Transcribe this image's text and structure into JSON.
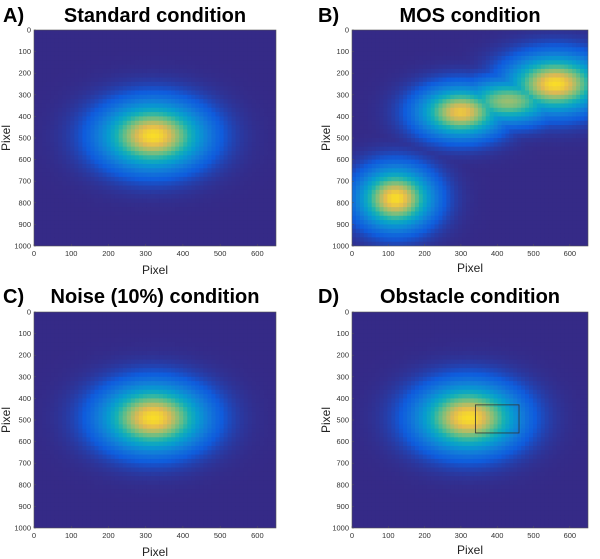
{
  "chart_data": [
    {
      "type": "heatmap",
      "panel_letter": "A)",
      "title": "Standard condition",
      "xlabel": "Pixel",
      "ylabel": "Pixel",
      "xlim": [
        0,
        650
      ],
      "ylim": [
        0,
        1000
      ],
      "y_reversed": true,
      "xticks": [
        0,
        100,
        200,
        300,
        400,
        500,
        600
      ],
      "yticks": [
        0,
        100,
        200,
        300,
        400,
        500,
        600,
        700,
        800,
        900,
        1000
      ],
      "colormap": "parula",
      "peaks": [
        {
          "x": 320,
          "y": 490,
          "sx": 95,
          "sy": 105,
          "amp": 1.0
        }
      ]
    },
    {
      "type": "heatmap",
      "panel_letter": "B)",
      "title": "MOS condition",
      "xlabel": "Pixel",
      "ylabel": "Pixel",
      "xlim": [
        0,
        650
      ],
      "ylim": [
        0,
        1000
      ],
      "y_reversed": true,
      "xticks": [
        0,
        100,
        200,
        300,
        400,
        500,
        600
      ],
      "yticks": [
        0,
        100,
        200,
        300,
        400,
        500,
        600,
        700,
        800,
        900,
        1000
      ],
      "colormap": "parula",
      "peaks": [
        {
          "x": 120,
          "y": 780,
          "sx": 70,
          "sy": 95,
          "amp": 1.0
        },
        {
          "x": 300,
          "y": 380,
          "sx": 80,
          "sy": 80,
          "amp": 0.95
        },
        {
          "x": 560,
          "y": 250,
          "sx": 90,
          "sy": 90,
          "amp": 1.0
        },
        {
          "x": 430,
          "y": 330,
          "sx": 90,
          "sy": 70,
          "amp": 0.8
        }
      ]
    },
    {
      "type": "heatmap",
      "panel_letter": "C)",
      "title": "Noise (10%) condition",
      "xlabel": "Pixel",
      "ylabel": "Pixel",
      "xlim": [
        0,
        650
      ],
      "ylim": [
        0,
        1000
      ],
      "y_reversed": true,
      "xticks": [
        0,
        100,
        200,
        300,
        400,
        500,
        600
      ],
      "yticks": [
        0,
        100,
        200,
        300,
        400,
        500,
        600,
        700,
        800,
        900,
        1000
      ],
      "colormap": "parula",
      "peaks": [
        {
          "x": 320,
          "y": 490,
          "sx": 95,
          "sy": 105,
          "amp": 1.0
        }
      ]
    },
    {
      "type": "heatmap",
      "panel_letter": "D)",
      "title": "Obstacle condition",
      "xlabel": "Pixel",
      "ylabel": "Pixel",
      "xlim": [
        0,
        650
      ],
      "ylim": [
        0,
        1000
      ],
      "y_reversed": true,
      "xticks": [
        0,
        100,
        200,
        300,
        400,
        500,
        600
      ],
      "yticks": [
        0,
        100,
        200,
        300,
        400,
        500,
        600,
        700,
        800,
        900,
        1000
      ],
      "colormap": "parula",
      "peaks": [
        {
          "x": 320,
          "y": 490,
          "sx": 95,
          "sy": 105,
          "amp": 1.0
        }
      ],
      "obstacle": {
        "x0": 340,
        "x1": 460,
        "y0": 430,
        "y1": 560
      }
    }
  ],
  "colors": {
    "parula_low": "#3a2c9c",
    "parula_mid": "#18b7b0",
    "parula_high": "#f9cc2a"
  }
}
